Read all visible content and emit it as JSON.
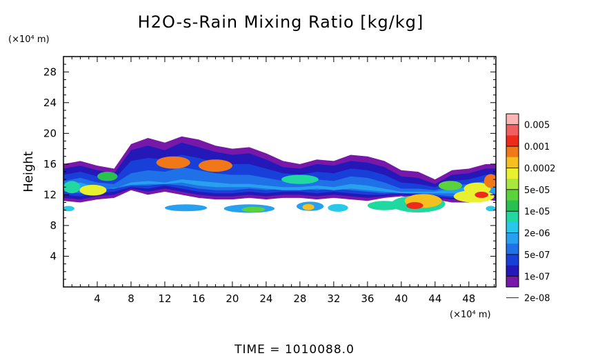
{
  "chart_data": {
    "type": "heatmap",
    "title": "H2O-s-Rain Mixing Ratio [kg/kg]",
    "xlabel": "",
    "x_unit": "(×10⁴ m)",
    "ylabel": "Height",
    "y_unit": "(×10⁴ m)",
    "xlim": [
      0,
      51.2
    ],
    "ylim": [
      0,
      30
    ],
    "x_ticks": [
      "4",
      "8",
      "12",
      "16",
      "20",
      "24",
      "28",
      "32",
      "36",
      "40",
      "44",
      "48"
    ],
    "y_ticks": [
      "4",
      "8",
      "12",
      "16",
      "20",
      "24",
      "28"
    ],
    "colorbar": {
      "labels": [
        "0.005",
        "0.001",
        "0.0002",
        "5e-05",
        "1e-05",
        "2e-06",
        "5e-07",
        "1e-07",
        "2e-08"
      ],
      "colors": [
        "#fbb4b4",
        "#f06060",
        "#ee2a1a",
        "#f07818",
        "#f4c020",
        "#e8f030",
        "#a8e83c",
        "#5ad23c",
        "#2ac050",
        "#20d8a0",
        "#28c8e8",
        "#28a0f0",
        "#2070e8",
        "#1840d8",
        "#2418b8",
        "#7818a8"
      ]
    },
    "bands": [
      {
        "level": 0,
        "top": [
          [
            0,
            16
          ],
          [
            2,
            16.4
          ],
          [
            4,
            15.8
          ],
          [
            6,
            15.4
          ],
          [
            8,
            18.6
          ],
          [
            10,
            19.4
          ],
          [
            12,
            18.8
          ],
          [
            14,
            19.6
          ],
          [
            16,
            19.2
          ],
          [
            18,
            18.4
          ],
          [
            20,
            18.0
          ],
          [
            22,
            18.2
          ],
          [
            24,
            17.4
          ],
          [
            26,
            16.4
          ],
          [
            28,
            16.0
          ],
          [
            30,
            16.6
          ],
          [
            32,
            16.4
          ],
          [
            34,
            17.2
          ],
          [
            36,
            17.0
          ],
          [
            38,
            16.4
          ],
          [
            40,
            15.2
          ],
          [
            42,
            15.0
          ],
          [
            44,
            14.0
          ],
          [
            46,
            15.2
          ],
          [
            48,
            15.4
          ],
          [
            50,
            16.0
          ],
          [
            51.2,
            16.0
          ]
        ],
        "bottom": [
          [
            0,
            11.2
          ],
          [
            2,
            11.0
          ],
          [
            4,
            11.4
          ],
          [
            6,
            11.6
          ],
          [
            8,
            12.6
          ],
          [
            10,
            12.0
          ],
          [
            12,
            12.4
          ],
          [
            14,
            12.0
          ],
          [
            16,
            11.6
          ],
          [
            18,
            11.4
          ],
          [
            20,
            11.4
          ],
          [
            22,
            11.6
          ],
          [
            24,
            11.4
          ],
          [
            26,
            11.6
          ],
          [
            28,
            11.6
          ],
          [
            30,
            11.4
          ],
          [
            32,
            11.6
          ],
          [
            34,
            11.4
          ],
          [
            36,
            11.2
          ],
          [
            38,
            11.6
          ],
          [
            40,
            11.8
          ],
          [
            42,
            11.6
          ],
          [
            44,
            11.4
          ],
          [
            46,
            11.0
          ],
          [
            48,
            11.0
          ],
          [
            50,
            11.4
          ],
          [
            51.2,
            11.2
          ]
        ]
      },
      {
        "level": 1,
        "top": [
          [
            0,
            15.4
          ],
          [
            2,
            15.8
          ],
          [
            4,
            15.2
          ],
          [
            6,
            14.8
          ],
          [
            8,
            17.8
          ],
          [
            10,
            18.4
          ],
          [
            12,
            17.8
          ],
          [
            14,
            18.8
          ],
          [
            16,
            18.2
          ],
          [
            18,
            17.6
          ],
          [
            20,
            17.2
          ],
          [
            22,
            17.4
          ],
          [
            24,
            16.6
          ],
          [
            26,
            15.6
          ],
          [
            28,
            15.4
          ],
          [
            30,
            16.0
          ],
          [
            32,
            15.8
          ],
          [
            34,
            16.4
          ],
          [
            36,
            16.2
          ],
          [
            38,
            15.6
          ],
          [
            40,
            14.4
          ],
          [
            42,
            14.2
          ],
          [
            44,
            13.4
          ],
          [
            46,
            14.6
          ],
          [
            48,
            14.8
          ],
          [
            50,
            15.4
          ],
          [
            51.2,
            15.4
          ]
        ],
        "bottom": [
          [
            0,
            11.6
          ],
          [
            2,
            11.4
          ],
          [
            4,
            11.8
          ],
          [
            6,
            12.0
          ],
          [
            8,
            12.8
          ],
          [
            10,
            12.4
          ],
          [
            12,
            12.8
          ],
          [
            14,
            12.4
          ],
          [
            16,
            12.0
          ],
          [
            18,
            11.8
          ],
          [
            20,
            11.8
          ],
          [
            22,
            12.0
          ],
          [
            24,
            11.8
          ],
          [
            26,
            12.0
          ],
          [
            28,
            12.0
          ],
          [
            30,
            11.8
          ],
          [
            32,
            12.0
          ],
          [
            34,
            11.8
          ],
          [
            36,
            11.6
          ],
          [
            38,
            11.8
          ],
          [
            40,
            12.0
          ],
          [
            42,
            11.8
          ],
          [
            44,
            11.6
          ],
          [
            46,
            11.4
          ],
          [
            48,
            11.4
          ],
          [
            50,
            11.8
          ],
          [
            51.2,
            11.6
          ]
        ]
      },
      {
        "level": 2,
        "top": [
          [
            0,
            14.6
          ],
          [
            2,
            15.0
          ],
          [
            4,
            14.4
          ],
          [
            6,
            14.0
          ],
          [
            8,
            16.4
          ],
          [
            10,
            16.8
          ],
          [
            12,
            16.6
          ],
          [
            14,
            17.2
          ],
          [
            16,
            16.8
          ],
          [
            18,
            16.2
          ],
          [
            20,
            16.0
          ],
          [
            22,
            16.0
          ],
          [
            24,
            15.4
          ],
          [
            26,
            14.8
          ],
          [
            28,
            14.6
          ],
          [
            30,
            15.0
          ],
          [
            32,
            14.8
          ],
          [
            34,
            15.4
          ],
          [
            36,
            15.2
          ],
          [
            38,
            14.6
          ],
          [
            40,
            13.6
          ],
          [
            42,
            13.4
          ],
          [
            44,
            13.0
          ],
          [
            46,
            13.8
          ],
          [
            48,
            14.0
          ],
          [
            50,
            14.6
          ],
          [
            51.2,
            14.6
          ]
        ],
        "bottom": [
          [
            0,
            12.0
          ],
          [
            2,
            11.8
          ],
          [
            4,
            12.2
          ],
          [
            6,
            12.4
          ],
          [
            8,
            13.0
          ],
          [
            10,
            12.8
          ],
          [
            12,
            13.2
          ],
          [
            14,
            12.8
          ],
          [
            16,
            12.4
          ],
          [
            18,
            12.2
          ],
          [
            20,
            12.2
          ],
          [
            22,
            12.4
          ],
          [
            24,
            12.2
          ],
          [
            26,
            12.4
          ],
          [
            28,
            12.4
          ],
          [
            30,
            12.2
          ],
          [
            32,
            12.4
          ],
          [
            34,
            12.2
          ],
          [
            36,
            12.0
          ],
          [
            38,
            12.0
          ],
          [
            40,
            12.2
          ],
          [
            42,
            12.0
          ],
          [
            44,
            11.8
          ],
          [
            46,
            11.6
          ],
          [
            48,
            11.6
          ],
          [
            50,
            12.0
          ],
          [
            51.2,
            11.8
          ]
        ]
      },
      {
        "level": 3,
        "top": [
          [
            0,
            13.8
          ],
          [
            2,
            14.2
          ],
          [
            4,
            13.6
          ],
          [
            6,
            13.4
          ],
          [
            8,
            14.8
          ],
          [
            10,
            15.2
          ],
          [
            12,
            15.0
          ],
          [
            14,
            15.6
          ],
          [
            16,
            15.2
          ],
          [
            18,
            14.8
          ],
          [
            20,
            14.6
          ],
          [
            22,
            14.6
          ],
          [
            24,
            14.2
          ],
          [
            26,
            13.8
          ],
          [
            28,
            13.8
          ],
          [
            30,
            14.0
          ],
          [
            32,
            13.8
          ],
          [
            34,
            14.4
          ],
          [
            36,
            14.2
          ],
          [
            38,
            13.6
          ],
          [
            40,
            12.8
          ],
          [
            42,
            12.8
          ],
          [
            44,
            12.6
          ],
          [
            46,
            13.2
          ],
          [
            48,
            13.4
          ],
          [
            50,
            13.8
          ],
          [
            51.2,
            13.8
          ]
        ],
        "bottom": [
          [
            0,
            12.4
          ],
          [
            2,
            12.2
          ],
          [
            4,
            12.6
          ],
          [
            6,
            12.8
          ],
          [
            8,
            13.2
          ],
          [
            10,
            13.2
          ],
          [
            12,
            13.4
          ],
          [
            14,
            13.2
          ],
          [
            16,
            12.8
          ],
          [
            18,
            12.6
          ],
          [
            20,
            12.6
          ],
          [
            22,
            12.8
          ],
          [
            24,
            12.6
          ],
          [
            26,
            12.8
          ],
          [
            28,
            12.8
          ],
          [
            30,
            12.6
          ],
          [
            32,
            12.8
          ],
          [
            34,
            12.6
          ],
          [
            36,
            12.4
          ],
          [
            38,
            12.2
          ],
          [
            40,
            12.4
          ],
          [
            42,
            12.2
          ],
          [
            44,
            12.0
          ],
          [
            46,
            11.8
          ],
          [
            48,
            11.8
          ],
          [
            50,
            12.2
          ],
          [
            51.2,
            12.0
          ]
        ]
      },
      {
        "level": 4,
        "top": [
          [
            0,
            13.2
          ],
          [
            2,
            13.6
          ],
          [
            4,
            13.0
          ],
          [
            6,
            12.8
          ],
          [
            8,
            13.6
          ],
          [
            10,
            13.8
          ],
          [
            12,
            13.6
          ],
          [
            14,
            14.0
          ],
          [
            16,
            13.8
          ],
          [
            18,
            13.6
          ],
          [
            20,
            13.4
          ],
          [
            22,
            13.4
          ],
          [
            24,
            13.2
          ],
          [
            26,
            13.0
          ],
          [
            28,
            13.0
          ],
          [
            30,
            13.2
          ],
          [
            32,
            13.0
          ],
          [
            34,
            13.4
          ],
          [
            36,
            13.2
          ],
          [
            38,
            12.8
          ],
          [
            40,
            12.4
          ],
          [
            42,
            12.4
          ],
          [
            44,
            12.4
          ],
          [
            46,
            12.8
          ],
          [
            48,
            13.0
          ],
          [
            50,
            13.4
          ],
          [
            51.2,
            13.4
          ]
        ],
        "bottom": [
          [
            0,
            12.6
          ],
          [
            2,
            12.6
          ],
          [
            4,
            12.8
          ],
          [
            6,
            12.9
          ],
          [
            8,
            13.3
          ],
          [
            10,
            13.4
          ],
          [
            12,
            13.4
          ],
          [
            14,
            13.6
          ],
          [
            16,
            13.2
          ],
          [
            18,
            13.0
          ],
          [
            20,
            13.0
          ],
          [
            22,
            13.0
          ],
          [
            24,
            12.8
          ],
          [
            26,
            12.6
          ],
          [
            28,
            12.6
          ],
          [
            30,
            12.8
          ],
          [
            32,
            12.6
          ],
          [
            34,
            12.8
          ],
          [
            36,
            12.6
          ],
          [
            38,
            12.4
          ],
          [
            40,
            12.2
          ],
          [
            42,
            12.2
          ],
          [
            44,
            12.2
          ],
          [
            46,
            12.2
          ],
          [
            48,
            12.0
          ],
          [
            50,
            12.4
          ],
          [
            51.2,
            12.2
          ]
        ]
      }
    ],
    "blobs": [
      {
        "x": 3.5,
        "y": 12.6,
        "rx": 1.6,
        "ry": 0.7,
        "level": 10
      },
      {
        "x": 5.2,
        "y": 14.4,
        "rx": 1.2,
        "ry": 0.6,
        "level": 7
      },
      {
        "x": 1.0,
        "y": 13.0,
        "rx": 1.0,
        "ry": 0.8,
        "level": 6
      },
      {
        "x": 13.0,
        "y": 16.2,
        "rx": 2.0,
        "ry": 0.8,
        "level": 12
      },
      {
        "x": 18.0,
        "y": 15.8,
        "rx": 2.0,
        "ry": 0.8,
        "level": 12
      },
      {
        "x": 28.0,
        "y": 14.0,
        "rx": 2.2,
        "ry": 0.6,
        "level": 6
      },
      {
        "x": 45.8,
        "y": 13.2,
        "rx": 1.4,
        "ry": 0.6,
        "level": 8
      },
      {
        "x": 49.0,
        "y": 12.8,
        "rx": 1.6,
        "ry": 0.8,
        "level": 10
      },
      {
        "x": 50.6,
        "y": 13.8,
        "rx": 0.8,
        "ry": 0.9,
        "level": 12
      },
      {
        "x": 14.5,
        "y": 10.3,
        "rx": 2.5,
        "ry": 0.45,
        "level": 4
      },
      {
        "x": 22.0,
        "y": 10.2,
        "rx": 3.0,
        "ry": 0.55,
        "level": 4
      },
      {
        "x": 22.5,
        "y": 10.1,
        "rx": 1.4,
        "ry": 0.35,
        "level": 8
      },
      {
        "x": 29.2,
        "y": 10.5,
        "rx": 1.6,
        "ry": 0.6,
        "level": 4
      },
      {
        "x": 29.0,
        "y": 10.4,
        "rx": 0.7,
        "ry": 0.4,
        "level": 11
      },
      {
        "x": 32.5,
        "y": 10.3,
        "rx": 1.2,
        "ry": 0.5,
        "level": 5
      },
      {
        "x": 38.0,
        "y": 10.6,
        "rx": 2.0,
        "ry": 0.6,
        "level": 6
      },
      {
        "x": 42.0,
        "y": 10.8,
        "rx": 3.2,
        "ry": 1.1,
        "level": 6
      },
      {
        "x": 42.6,
        "y": 11.2,
        "rx": 2.2,
        "ry": 0.9,
        "level": 11
      },
      {
        "x": 41.6,
        "y": 10.6,
        "rx": 1.0,
        "ry": 0.45,
        "level": 13
      },
      {
        "x": 48.6,
        "y": 11.8,
        "rx": 2.4,
        "ry": 0.8,
        "level": 10
      },
      {
        "x": 49.5,
        "y": 12.0,
        "rx": 0.8,
        "ry": 0.4,
        "level": 13
      },
      {
        "x": 0.6,
        "y": 10.2,
        "rx": 0.7,
        "ry": 0.35,
        "level": 5
      },
      {
        "x": 50.6,
        "y": 10.2,
        "rx": 0.6,
        "ry": 0.35,
        "level": 5
      }
    ]
  },
  "footer": {
    "time": "TIME = 1010088.0"
  }
}
